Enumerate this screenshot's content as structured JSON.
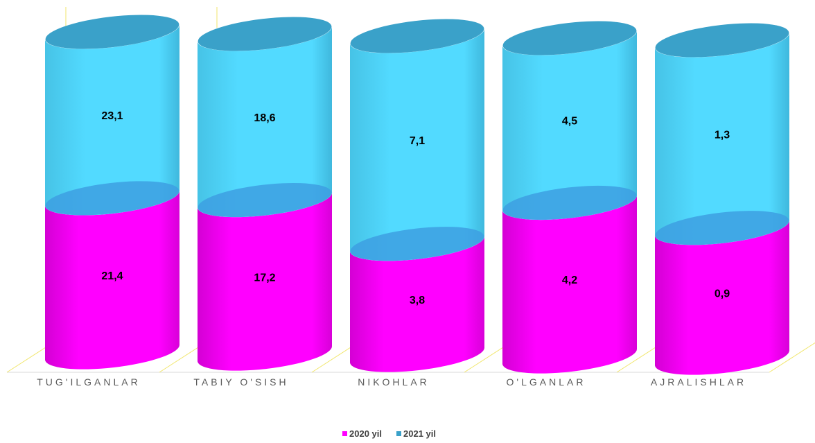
{
  "chart_data": {
    "type": "bar",
    "stacked": true,
    "categories": [
      "TUG'ILGANLAR",
      "TABIY O'SISH",
      "NIKOHLAR",
      "O'LGANLAR",
      "AJRALISHLAR"
    ],
    "series": [
      {
        "name": "2020 yil",
        "values": [
          21.4,
          17.2,
          3.8,
          4.2,
          0.9
        ],
        "labels": [
          "21,4",
          "17,2",
          "3,8",
          "4,2",
          "0,9"
        ],
        "color": "#ff00ff"
      },
      {
        "name": "2021 yil",
        "values": [
          23.1,
          18.6,
          7.1,
          4.5,
          1.3
        ],
        "labels": [
          "23,1",
          "18,6",
          "7,1",
          "4,5",
          "1,3"
        ],
        "color": "#4fd6f9"
      }
    ],
    "title": "",
    "xlabel": "",
    "ylabel": "",
    "legend": "bottom-center",
    "grid": false,
    "shape": "cylinder",
    "colors": {
      "top_cap": "#3aa1c9",
      "divider_cap": "#3d9fe2",
      "floor": "#f1e66b"
    }
  }
}
